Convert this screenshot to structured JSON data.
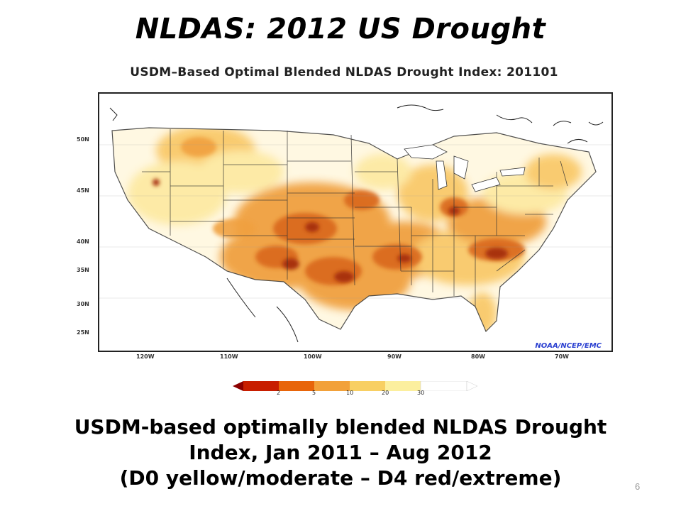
{
  "slide": {
    "title": "NLDAS:  2012 US Drought",
    "caption_lines": [
      "USDM-based optimally blended NLDAS Drought",
      "Index, Jan 2011 – Aug 2012",
      "(D0 yellow/moderate – D4 red/extreme)"
    ],
    "page_number": "6"
  },
  "map": {
    "title": "USDM–Based Optimal Blended NLDAS Drought Index: 201101",
    "credit": "NOAA/NCEP/EMC",
    "lat_labels": [
      "50N",
      "45N",
      "40N",
      "35N",
      "30N",
      "25N"
    ],
    "lon_labels": [
      "120W",
      "110W",
      "100W",
      "90W",
      "80W",
      "70W"
    ],
    "colorbar": {
      "ticks": [
        "2",
        "5",
        "10",
        "20",
        "30"
      ],
      "colors": [
        "#8b0000",
        "#c81e00",
        "#e8650a",
        "#f2a13a",
        "#f8cf63",
        "#fcef9e",
        "#ffffff"
      ]
    },
    "drought_colors": {
      "d0": "#fde9a3",
      "d1": "#f9c96a",
      "d2": "#f0a040",
      "d3": "#d9681a",
      "d4": "#a83008"
    }
  }
}
